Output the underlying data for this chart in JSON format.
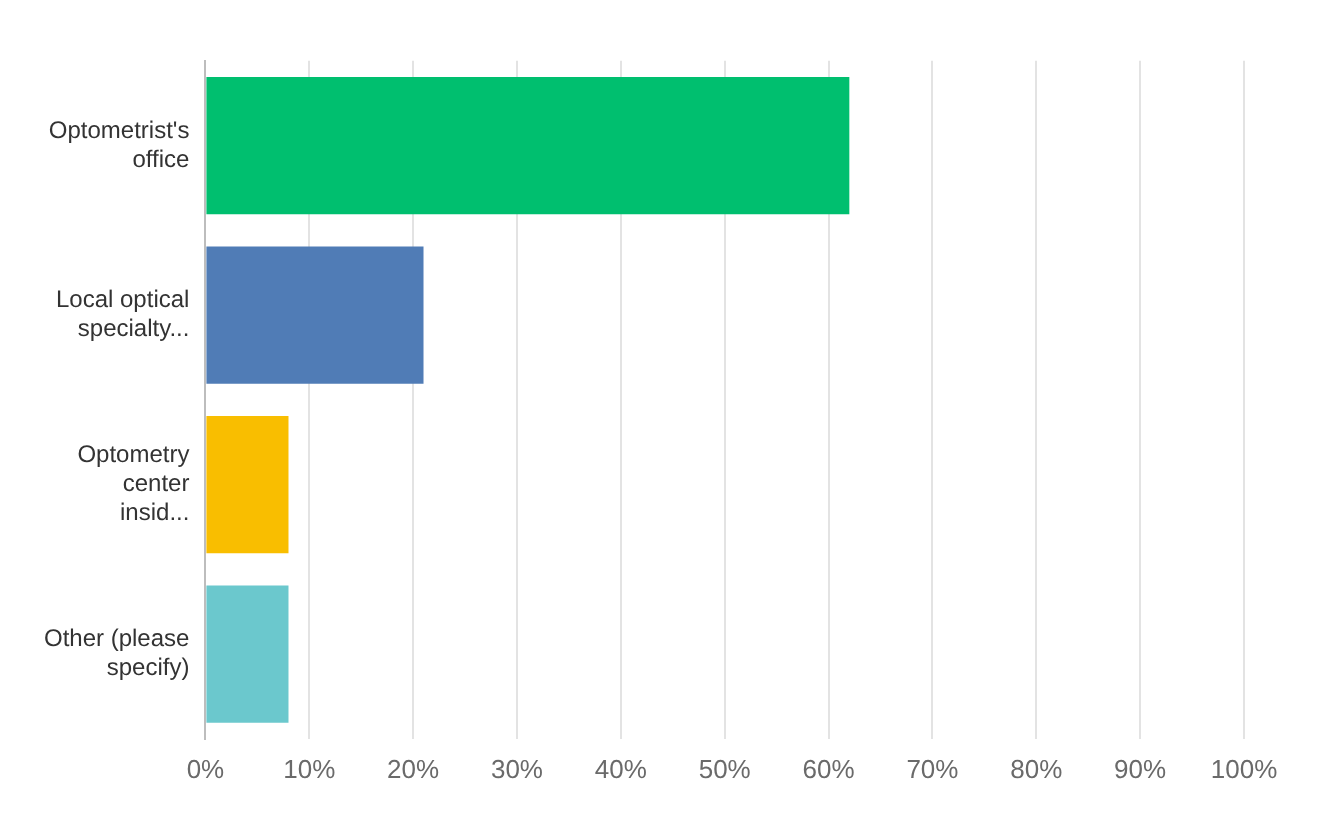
{
  "chart_data": {
    "type": "bar",
    "orientation": "horizontal",
    "categories": [
      "Optometrist's office",
      "Local optical specialty...",
      "Optometry center insid...",
      "Other (please specify)"
    ],
    "values": [
      62,
      21,
      8,
      8
    ],
    "colors": [
      "#00bf6f",
      "#507cb6",
      "#f9be00",
      "#6bc8cd"
    ],
    "xlim": [
      0,
      100
    ],
    "xticks": [
      {
        "value": 0,
        "label": "0%"
      },
      {
        "value": 10,
        "label": "10%"
      },
      {
        "value": 20,
        "label": "20%"
      },
      {
        "value": 30,
        "label": "30%"
      },
      {
        "value": 40,
        "label": "40%"
      },
      {
        "value": 50,
        "label": "50%"
      },
      {
        "value": 60,
        "label": "60%"
      },
      {
        "value": 70,
        "label": "70%"
      },
      {
        "value": 80,
        "label": "80%"
      },
      {
        "value": 90,
        "label": "90%"
      },
      {
        "value": 100,
        "label": "100%"
      }
    ],
    "grid": "x"
  }
}
